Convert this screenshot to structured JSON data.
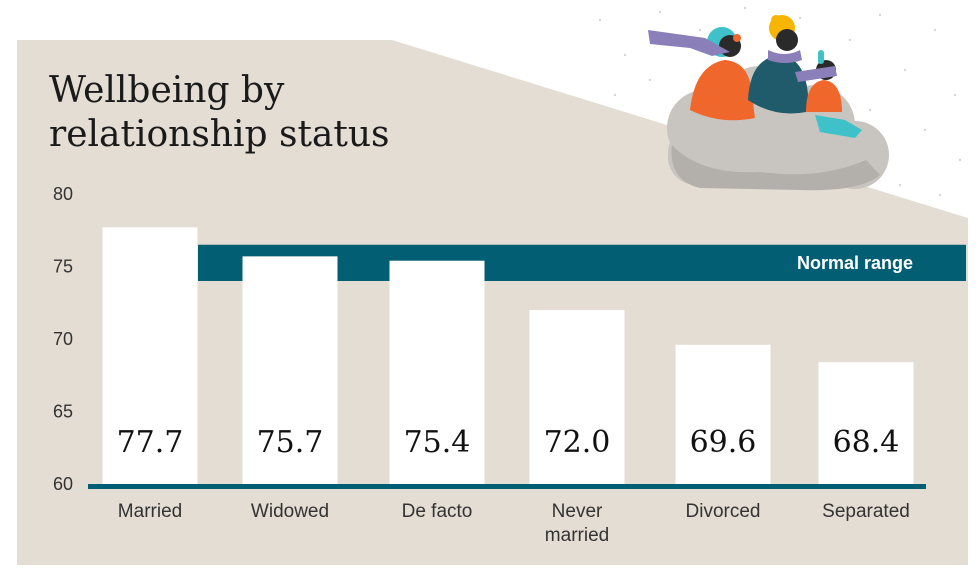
{
  "colors": {
    "panel": "#e3ddd3",
    "band": "#025e73",
    "bar": "#ffffff",
    "axis": "#025e73",
    "title": "#1a1a1a",
    "tick": "#333333",
    "band_text": "#ffffff",
    "value_text": "#111111",
    "cloud": "#c8c4c0",
    "figure_orange": "#f0672b",
    "figure_teal": "#1f5b6a",
    "figure_purple": "#8a7fb8",
    "figure_yellow": "#f7b500",
    "figure_cyan": "#3fc1c9"
  },
  "illustration": {
    "name": "people-on-cloud-illustration"
  },
  "chart_data": {
    "type": "bar",
    "title": "Wellbeing by relationship status",
    "title_lines": [
      "Wellbeing by",
      "relationship status"
    ],
    "categories": [
      "Married",
      "Widowed",
      "De facto",
      "Never married",
      "Divorced",
      "Separated"
    ],
    "category_lines": [
      [
        "Married"
      ],
      [
        "Widowed"
      ],
      [
        "De facto"
      ],
      [
        "Never",
        "married"
      ],
      [
        "Divorced"
      ],
      [
        "Separated"
      ]
    ],
    "values": [
      77.7,
      75.7,
      75.4,
      72.0,
      69.6,
      68.4
    ],
    "value_labels": [
      "77.7",
      "75.7",
      "75.4",
      "72.0",
      "69.6",
      "68.4"
    ],
    "ylim": [
      60,
      80
    ],
    "yticks": [
      "60",
      "65",
      "70",
      "75",
      "80"
    ],
    "normal_range": {
      "label": "Normal range",
      "from": 74,
      "to": 76.5
    },
    "xlabel": "",
    "ylabel": "",
    "grid": false,
    "legend": "none"
  }
}
